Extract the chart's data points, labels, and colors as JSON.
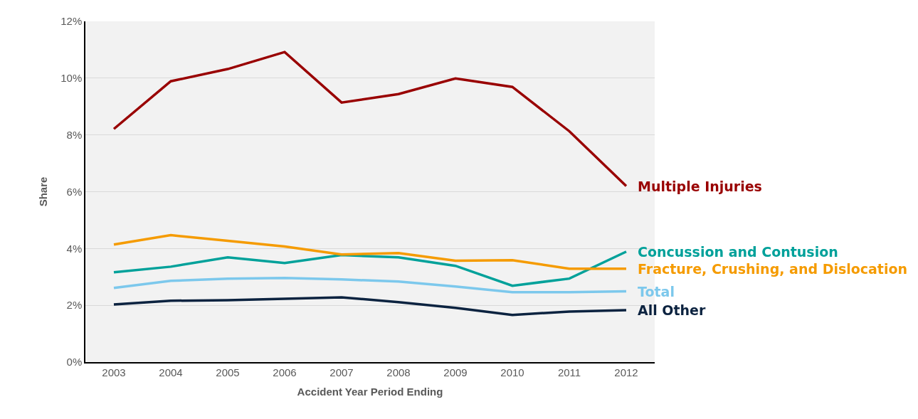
{
  "chart_data": {
    "type": "line",
    "xlabel": "Accident Year Period Ending",
    "ylabel": "Share",
    "categories": [
      "2003",
      "2004",
      "2005",
      "2006",
      "2007",
      "2008",
      "2009",
      "2010",
      "2011",
      "2012"
    ],
    "ylim": [
      0,
      12
    ],
    "yticks": [
      {
        "value": 0,
        "label": "0%"
      },
      {
        "value": 2,
        "label": "2%"
      },
      {
        "value": 4,
        "label": "4%"
      },
      {
        "value": 6,
        "label": "6%"
      },
      {
        "value": 8,
        "label": "8%"
      },
      {
        "value": 10,
        "label": "10%"
      },
      {
        "value": 12,
        "label": "12%"
      }
    ],
    "grid": "y",
    "legend": false,
    "marker": "none",
    "line_style": "solid",
    "series": [
      {
        "name": "Multiple Injuries",
        "color": "#990000",
        "values": [
          8.21,
          9.89,
          10.32,
          10.92,
          9.14,
          9.44,
          9.99,
          9.69,
          8.13,
          6.2
        ]
      },
      {
        "name": "Concussion and Contusion",
        "color": "#00a19a",
        "values": [
          3.16,
          3.36,
          3.69,
          3.49,
          3.77,
          3.69,
          3.39,
          2.69,
          2.94,
          3.89
        ]
      },
      {
        "name": "Fracture, Crushing, and Dislocation",
        "color": "#f59b00",
        "values": [
          4.14,
          4.47,
          4.27,
          4.07,
          3.79,
          3.84,
          3.57,
          3.59,
          3.29,
          3.29
        ]
      },
      {
        "name": "Total",
        "color": "#7cc8ec",
        "values": [
          2.61,
          2.86,
          2.94,
          2.96,
          2.91,
          2.84,
          2.66,
          2.46,
          2.46,
          2.49
        ]
      },
      {
        "name": "All Other",
        "color": "#0c2340",
        "values": [
          2.03,
          2.16,
          2.18,
          2.23,
          2.28,
          2.11,
          1.91,
          1.66,
          1.78,
          1.83
        ]
      }
    ]
  }
}
